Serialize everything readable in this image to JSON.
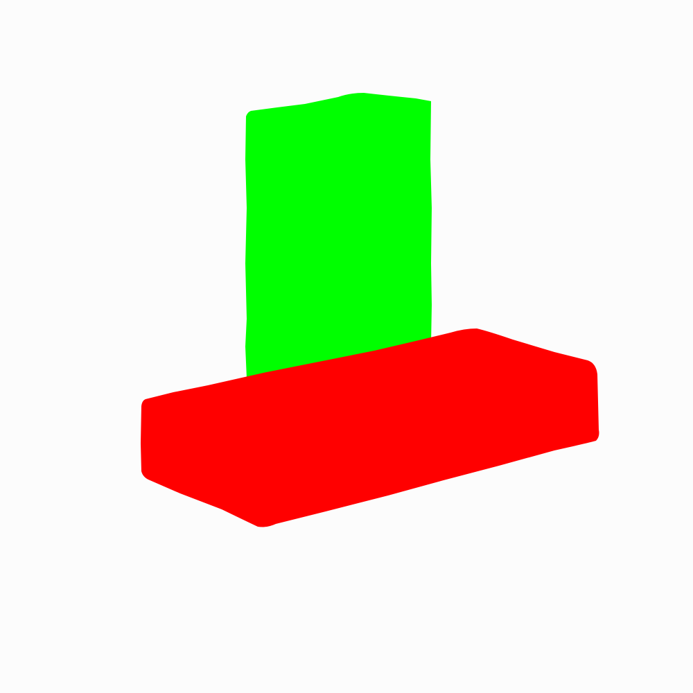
{
  "scene": {
    "background_color": "#fcfcfc",
    "shapes": [
      {
        "name": "green-block",
        "color": "#00ff00"
      },
      {
        "name": "red-block",
        "color": "#ff0000"
      }
    ]
  }
}
